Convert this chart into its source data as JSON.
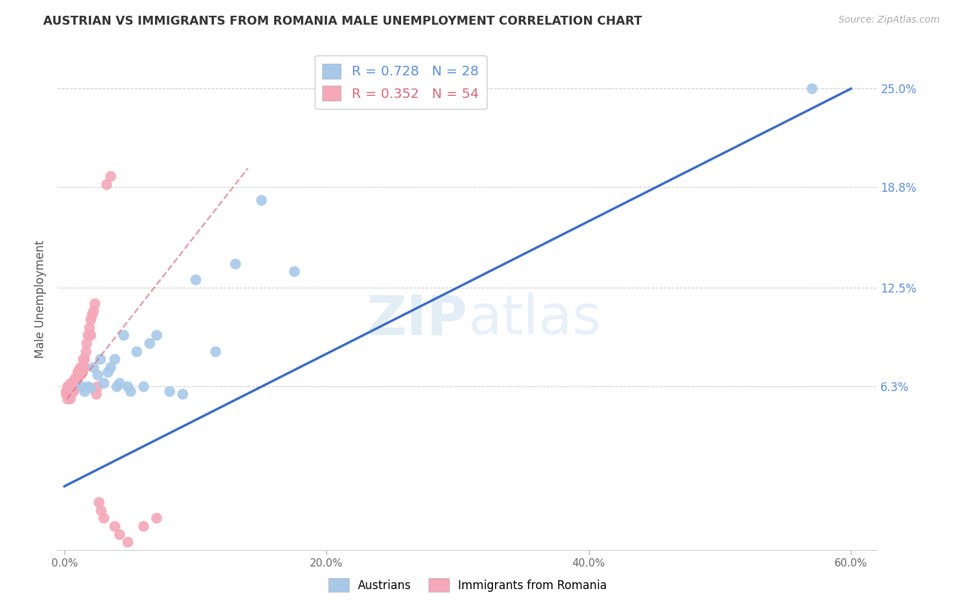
{
  "title": "AUSTRIAN VS IMMIGRANTS FROM ROMANIA MALE UNEMPLOYMENT CORRELATION CHART",
  "source": "Source: ZipAtlas.com",
  "ylabel": "Male Unemployment",
  "xlabel": "",
  "legend_label_1": "Austrians",
  "legend_label_2": "Immigrants from Romania",
  "R1": 0.728,
  "N1": 28,
  "R2": 0.352,
  "N2": 54,
  "color_blue": "#a8c8e8",
  "color_pink": "#f4a8b8",
  "color_blue_line": "#3a6bc4",
  "color_pink_line": "#d47888",
  "ytick_labels": [
    "6.3%",
    "12.5%",
    "18.8%",
    "25.0%"
  ],
  "ytick_values": [
    0.063,
    0.125,
    0.188,
    0.25
  ],
  "xtick_labels": [
    "0.0%",
    "20.0%",
    "40.0%",
    "60.0%"
  ],
  "xtick_values": [
    0.0,
    0.2,
    0.4,
    0.6
  ],
  "xlim": [
    -0.005,
    0.62
  ],
  "ylim": [
    -0.04,
    0.275
  ],
  "blue_x": [
    0.013,
    0.015,
    0.018,
    0.02,
    0.022,
    0.025,
    0.027,
    0.03,
    0.033,
    0.035,
    0.038,
    0.04,
    0.042,
    0.045,
    0.048,
    0.05,
    0.055,
    0.06,
    0.065,
    0.07,
    0.08,
    0.09,
    0.1,
    0.115,
    0.13,
    0.15,
    0.175,
    0.57
  ],
  "blue_y": [
    0.063,
    0.06,
    0.063,
    0.062,
    0.075,
    0.07,
    0.08,
    0.065,
    0.072,
    0.075,
    0.08,
    0.063,
    0.065,
    0.095,
    0.063,
    0.06,
    0.085,
    0.063,
    0.09,
    0.095,
    0.06,
    0.058,
    0.13,
    0.085,
    0.14,
    0.18,
    0.135,
    0.25
  ],
  "pink_x": [
    0.001,
    0.001,
    0.002,
    0.002,
    0.002,
    0.003,
    0.003,
    0.004,
    0.004,
    0.005,
    0.005,
    0.005,
    0.006,
    0.006,
    0.006,
    0.007,
    0.007,
    0.008,
    0.008,
    0.008,
    0.009,
    0.009,
    0.01,
    0.01,
    0.01,
    0.011,
    0.012,
    0.012,
    0.013,
    0.014,
    0.014,
    0.015,
    0.015,
    0.016,
    0.017,
    0.018,
    0.019,
    0.02,
    0.02,
    0.021,
    0.022,
    0.023,
    0.024,
    0.025,
    0.026,
    0.028,
    0.03,
    0.032,
    0.035,
    0.038,
    0.042,
    0.048,
    0.06,
    0.07
  ],
  "pink_y": [
    0.06,
    0.058,
    0.055,
    0.06,
    0.063,
    0.058,
    0.063,
    0.055,
    0.06,
    0.058,
    0.06,
    0.065,
    0.06,
    0.063,
    0.065,
    0.06,
    0.063,
    0.065,
    0.063,
    0.068,
    0.063,
    0.068,
    0.068,
    0.07,
    0.072,
    0.073,
    0.07,
    0.075,
    0.075,
    0.075,
    0.08,
    0.075,
    0.08,
    0.085,
    0.09,
    0.095,
    0.1,
    0.095,
    0.105,
    0.108,
    0.11,
    0.115,
    0.058,
    0.063,
    -0.01,
    -0.015,
    -0.02,
    0.19,
    0.195,
    -0.025,
    -0.03,
    -0.035,
    -0.025,
    -0.02
  ],
  "blue_line_x0": 0.0,
  "blue_line_y0": 0.0,
  "blue_line_x1": 0.6,
  "blue_line_y1": 0.25,
  "pink_line_x0": 0.002,
  "pink_line_y0": 0.055,
  "pink_line_x1": 0.14,
  "pink_line_y1": 0.2,
  "watermark_zip": "ZIP",
  "watermark_atlas": "atlas",
  "background_color": "#ffffff"
}
